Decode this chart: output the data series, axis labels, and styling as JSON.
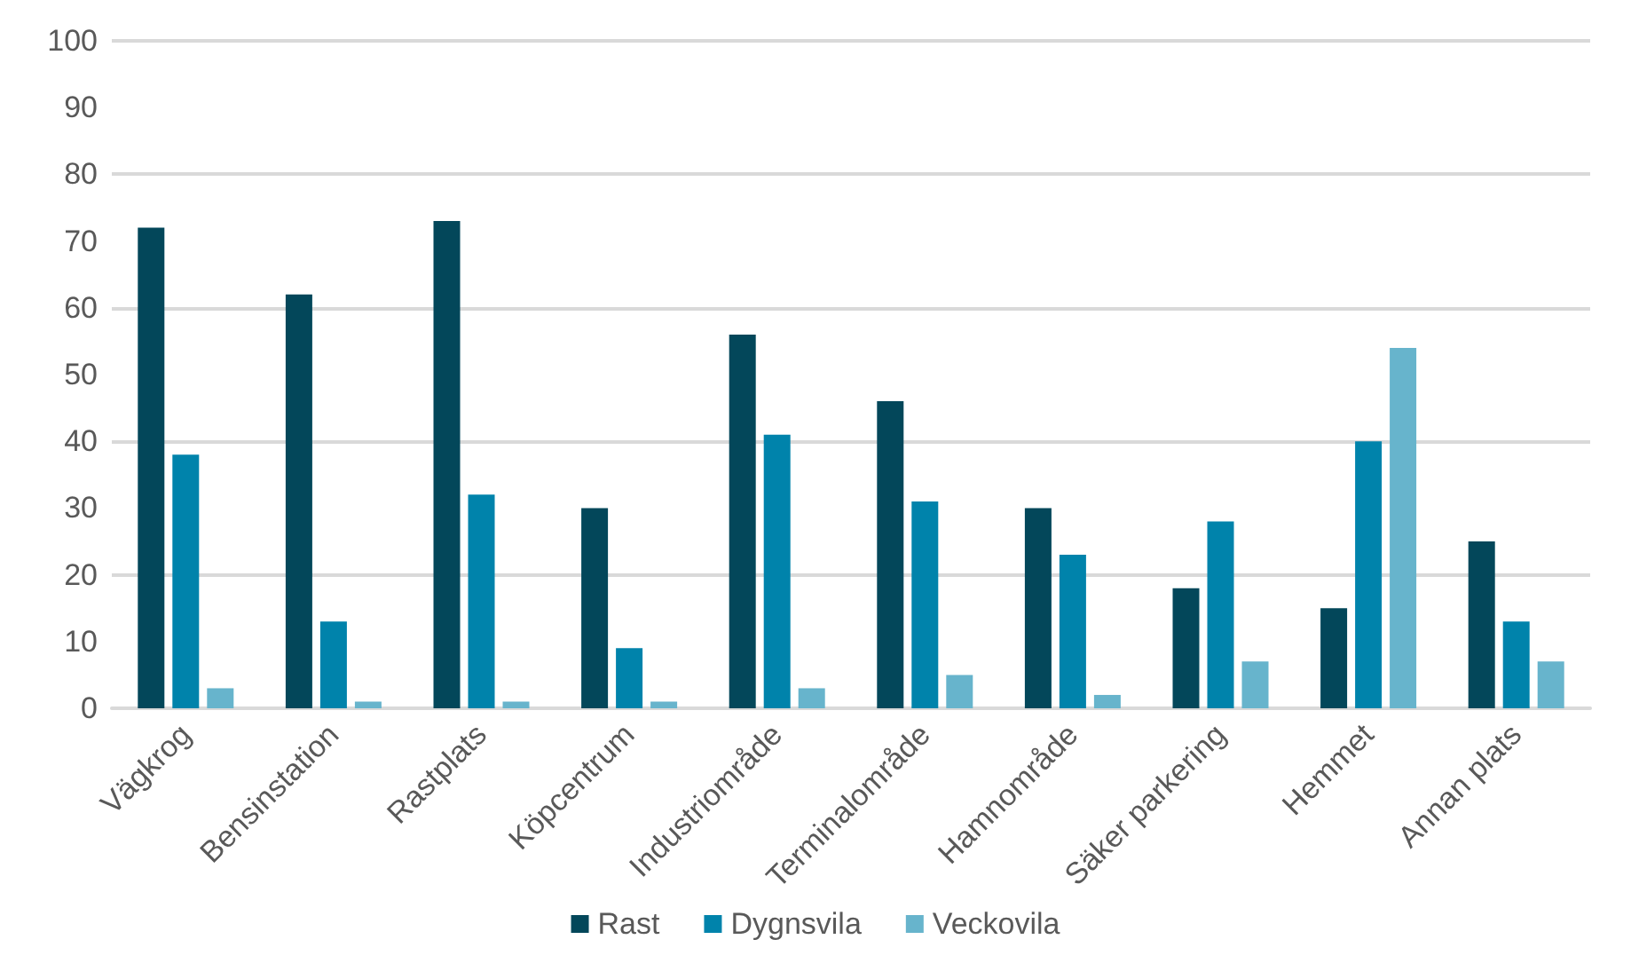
{
  "chart_data": {
    "type": "bar",
    "categories": [
      "Vägkrog",
      "Bensinstation",
      "Rastplats",
      "Köpcentrum",
      "Industriområde",
      "Terminalområde",
      "Hamnområde",
      "Säker parkering",
      "Hemmet",
      "Annan plats"
    ],
    "series": [
      {
        "name": "Rast",
        "color": "#03475a",
        "values": [
          72,
          62,
          73,
          30,
          56,
          46,
          30,
          18,
          15,
          25
        ]
      },
      {
        "name": "Dygnsvila",
        "color": "#0083ab",
        "values": [
          38,
          13,
          32,
          9,
          41,
          31,
          23,
          28,
          40,
          13
        ]
      },
      {
        "name": "Veckovila",
        "color": "#67b4cc",
        "values": [
          3,
          1,
          1,
          1,
          3,
          5,
          2,
          7,
          54,
          7
        ]
      }
    ],
    "ylim": [
      0,
      100
    ],
    "yticks": [
      0,
      10,
      20,
      30,
      40,
      50,
      60,
      70,
      80,
      90,
      100
    ],
    "grid": "y",
    "legend": "bottom"
  }
}
